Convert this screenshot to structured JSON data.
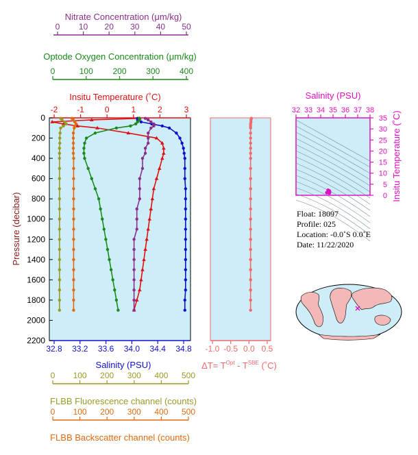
{
  "colors": {
    "nitrate": "#8b2f8b",
    "oxygen": "#1a8a1a",
    "temperature": "#e01010",
    "salinity": "#1010cc",
    "fluorescence": "#9a9a2a",
    "backscatter": "#e06a10",
    "deltaT": "#f06a6a",
    "ts": "#e010c0",
    "panel_bg": "#cdeef8",
    "land": "#f4b8b8"
  },
  "axes": {
    "nitrate": {
      "title": "Nitrate Concentration (μm/kg)",
      "ticks": [
        "0",
        "10",
        "20",
        "30",
        "40",
        "50"
      ]
    },
    "oxygen": {
      "title": "Optode Oxygen Concentration (μm/kg)",
      "ticks": [
        "0",
        "100",
        "200",
        "300",
        "400"
      ]
    },
    "temperature": {
      "title": "Insitu Temperature (˚C)",
      "ticks": [
        "-2",
        "-1",
        "0",
        "1",
        "2",
        "3"
      ]
    },
    "pressure": {
      "title": "Pressure (decibar)",
      "ticks": [
        "0",
        "200",
        "400",
        "600",
        "800",
        "1000",
        "1200",
        "1400",
        "1600",
        "1800",
        "2000",
        "2200"
      ]
    },
    "salinity": {
      "title": "Salinity (PSU)",
      "ticks": [
        "32.8",
        "33.2",
        "33.6",
        "34.0",
        "34.4",
        "34.8"
      ]
    },
    "fluorescence": {
      "title": "FLBB Fluorescence channel (counts)",
      "ticks": [
        "0",
        "100",
        "200",
        "300",
        "400",
        "500"
      ]
    },
    "backscatter": {
      "title": "FLBB Backscatter channel (counts)",
      "ticks": [
        "0",
        "100",
        "200",
        "300",
        "400",
        "500"
      ]
    },
    "deltaT": {
      "title_prefix": "ΔT= T",
      "sup1": "Opt",
      "title_mid": " - T",
      "sup2": "SBE",
      "title_suffix": " (˚C)",
      "ticks": [
        "-1.0",
        "-0.5",
        "0.0",
        "0.5"
      ]
    },
    "ts_salinity": {
      "title": "Salinity (PSU)",
      "ticks": [
        "32",
        "33",
        "34",
        "35",
        "36",
        "37",
        "38"
      ]
    },
    "ts_temperature": {
      "title": "Insitu Temperature (˚C)",
      "ticks": [
        "0",
        "5",
        "10",
        "15",
        "20",
        "25",
        "30",
        "35"
      ]
    }
  },
  "info": {
    "float": "Float:  18097",
    "profile": "Profile:  025",
    "location": "Location:  -0.0˚S   0.0˚E",
    "date": "Date:  11/22/2020"
  },
  "chart_data": {
    "type": "line",
    "y_axis": "pressure",
    "ylim": [
      2200,
      0
    ],
    "pressure": [
      5,
      20,
      40,
      60,
      80,
      100,
      150,
      200,
      250,
      300,
      350,
      400,
      500,
      600,
      700,
      800,
      900,
      1000,
      1100,
      1200,
      1300,
      1400,
      1500,
      1600,
      1700,
      1800,
      1900
    ],
    "series": [
      {
        "name": "Insitu Temperature",
        "axis": "temperature",
        "xlim": [
          -2,
          3
        ],
        "marker": "triangle",
        "values": [
          1.2,
          -0.5,
          -1.9,
          -1.5,
          -1.0,
          -0.3,
          0.8,
          1.8,
          2.0,
          2.05,
          2.05,
          2.0,
          1.9,
          1.8,
          1.7,
          1.65,
          1.6,
          1.55,
          1.5,
          1.45,
          1.4,
          1.35,
          1.3,
          1.25,
          1.2,
          1.1,
          1.0
        ]
      },
      {
        "name": "Salinity",
        "axis": "salinity",
        "xlim": [
          32.8,
          34.8
        ],
        "marker": "dot",
        "values": [
          34.05,
          34.05,
          34.1,
          34.25,
          34.4,
          34.5,
          34.6,
          34.65,
          34.68,
          34.7,
          34.71,
          34.72,
          34.72,
          34.72,
          34.73,
          34.73,
          34.73,
          34.73,
          34.73,
          34.73,
          34.73,
          34.73,
          34.73,
          34.73,
          34.73,
          34.72,
          34.72
        ]
      },
      {
        "name": "Optode Oxygen",
        "axis": "oxygen",
        "xlim": [
          0,
          400
        ],
        "marker": "dot",
        "values": [
          255,
          255,
          250,
          245,
          230,
          190,
          130,
          105,
          100,
          98,
          98,
          100,
          110,
          120,
          130,
          140,
          145,
          150,
          155,
          160,
          165,
          170,
          175,
          180,
          185,
          190,
          195
        ]
      },
      {
        "name": "Nitrate",
        "axis": "nitrate",
        "xlim": [
          0,
          50
        ],
        "marker": "dot",
        "values": [
          34,
          35,
          36,
          37,
          37,
          36,
          35,
          35,
          35,
          34,
          34,
          33,
          33,
          32,
          32,
          32,
          31,
          31,
          31,
          30,
          30,
          30,
          30,
          30,
          30,
          30,
          30
        ]
      },
      {
        "name": "FLBB Fluorescence",
        "axis": "fluorescence",
        "xlim": [
          0,
          500
        ],
        "marker": "dot",
        "values": [
          40,
          45,
          55,
          60,
          50,
          40,
          38,
          37,
          37,
          36,
          36,
          36,
          36,
          36,
          36,
          36,
          36,
          36,
          36,
          36,
          36,
          36,
          36,
          36,
          36,
          36,
          36
        ]
      },
      {
        "name": "FLBB Backscatter",
        "axis": "backscatter",
        "xlim": [
          0,
          500
        ],
        "marker": "dot",
        "values": [
          80,
          85,
          90,
          95,
          90,
          88,
          85,
          85,
          85,
          85,
          85,
          86,
          86,
          86,
          86,
          86,
          86,
          86,
          86,
          86,
          86,
          86,
          86,
          86,
          86,
          86,
          86
        ]
      },
      {
        "name": "Delta T",
        "axis": "deltaT",
        "xlim": [
          -1.0,
          0.5
        ],
        "marker": "dot",
        "values": [
          0.02,
          0.01,
          0.01,
          0.0,
          0.0,
          0.0,
          0.0,
          0.0,
          0.0,
          0.0,
          0.0,
          0.0,
          0.0,
          0.0,
          0.0,
          0.0,
          0.0,
          0.0,
          0.0,
          0.0,
          0.0,
          0.0,
          0.0,
          0.0,
          0.0,
          0.0,
          0.0
        ]
      }
    ],
    "ts_points": [
      {
        "salinity": 34.7,
        "temperature": 1.0
      },
      {
        "salinity": 34.72,
        "temperature": 1.5
      },
      {
        "salinity": 34.7,
        "temperature": 2.0
      },
      {
        "salinity": 34.6,
        "temperature": 2.3
      },
      {
        "salinity": 34.5,
        "temperature": 1.2
      }
    ]
  }
}
